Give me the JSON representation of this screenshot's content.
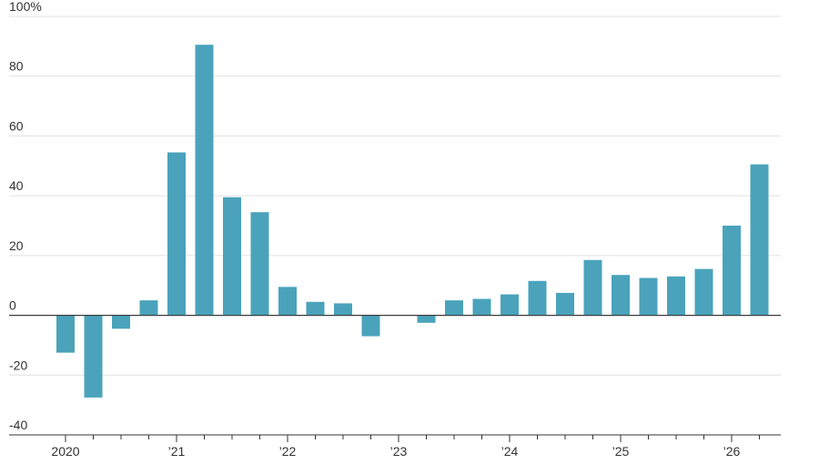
{
  "chart_data": {
    "type": "bar",
    "categories": [
      "2020",
      null,
      null,
      null,
      "’21",
      null,
      null,
      null,
      "’22",
      null,
      null,
      null,
      "’23",
      null,
      null,
      null,
      "’24",
      null,
      null,
      null,
      "’25",
      null,
      null,
      null,
      "’26",
      null
    ],
    "values": [
      -12.5,
      -27.5,
      -4.5,
      5,
      54.5,
      90.5,
      39.5,
      34.5,
      9.5,
      4.5,
      4,
      -7,
      0,
      -2.5,
      5,
      5.5,
      7,
      11.5,
      7.5,
      18.5,
      13.5,
      12.5,
      13,
      15.5,
      30,
      50.5
    ],
    "color": "#4aa3bb",
    "ylim": [
      -40,
      100
    ],
    "yticks": [
      -40,
      -20,
      0,
      20,
      40,
      60,
      80,
      {
        "value": 100,
        "label": "100%"
      }
    ],
    "grid": true
  }
}
